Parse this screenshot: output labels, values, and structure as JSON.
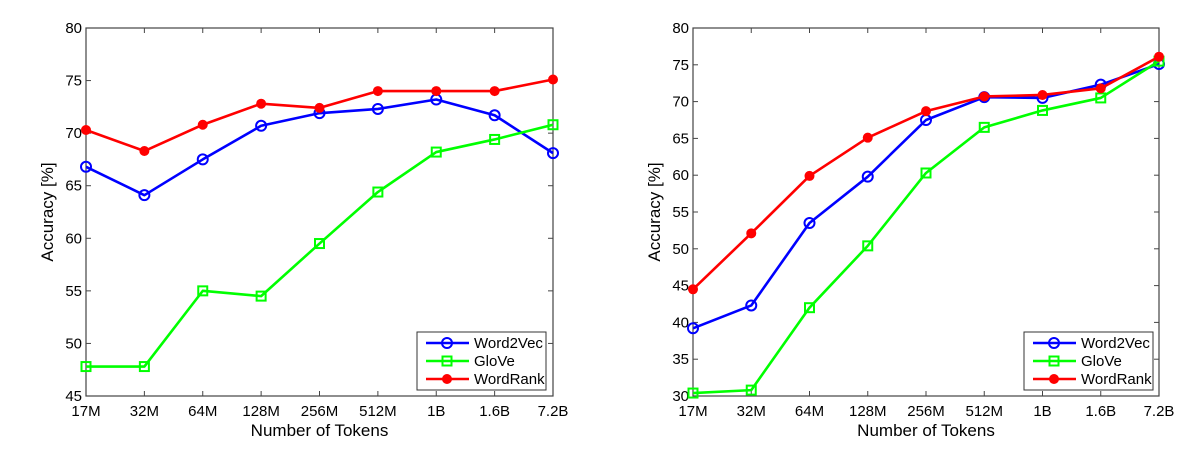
{
  "chart_data": [
    {
      "type": "line",
      "title": "",
      "xlabel": "Number of Tokens",
      "ylabel": "Accuracy [%]",
      "categories": [
        "17M",
        "32M",
        "64M",
        "128M",
        "256M",
        "512M",
        "1B",
        "1.6B",
        "7.2B"
      ],
      "ylim": [
        45,
        80
      ],
      "yticks": [
        45,
        50,
        55,
        60,
        65,
        70,
        75,
        80
      ],
      "grid": false,
      "legend": "bottom-right",
      "series": [
        {
          "name": "Word2Vec",
          "color": "#0000ff",
          "marker": "circle-open",
          "values": [
            66.8,
            64.1,
            67.5,
            70.7,
            71.9,
            72.3,
            73.2,
            71.7,
            68.1
          ]
        },
        {
          "name": "GloVe",
          "color": "#00ff00",
          "marker": "square-open",
          "values": [
            47.8,
            47.8,
            55.0,
            54.5,
            59.5,
            64.4,
            68.2,
            69.4,
            70.8
          ]
        },
        {
          "name": "WordRank",
          "color": "#ff0000",
          "marker": "circle-filled",
          "values": [
            70.3,
            68.3,
            70.8,
            72.8,
            72.4,
            74.0,
            74.0,
            74.0,
            75.1
          ]
        }
      ]
    },
    {
      "type": "line",
      "title": "",
      "xlabel": "Number of Tokens",
      "ylabel": "Accuracy [%]",
      "categories": [
        "17M",
        "32M",
        "64M",
        "128M",
        "256M",
        "512M",
        "1B",
        "1.6B",
        "7.2B"
      ],
      "ylim": [
        30,
        80
      ],
      "yticks": [
        30,
        35,
        40,
        45,
        50,
        55,
        60,
        65,
        70,
        75,
        80
      ],
      "grid": false,
      "legend": "bottom-right",
      "series": [
        {
          "name": "Word2Vec",
          "color": "#0000ff",
          "marker": "circle-open",
          "values": [
            39.2,
            42.3,
            53.5,
            59.8,
            67.5,
            70.6,
            70.5,
            72.3,
            75.1
          ]
        },
        {
          "name": "GloVe",
          "color": "#00ff00",
          "marker": "square-open",
          "values": [
            30.4,
            30.8,
            42.0,
            50.4,
            60.3,
            66.5,
            68.8,
            70.5,
            75.5
          ]
        },
        {
          "name": "WordRank",
          "color": "#ff0000",
          "marker": "circle-filled",
          "values": [
            44.5,
            52.1,
            59.9,
            65.1,
            68.7,
            70.7,
            70.9,
            71.8,
            76.1
          ]
        }
      ]
    }
  ]
}
